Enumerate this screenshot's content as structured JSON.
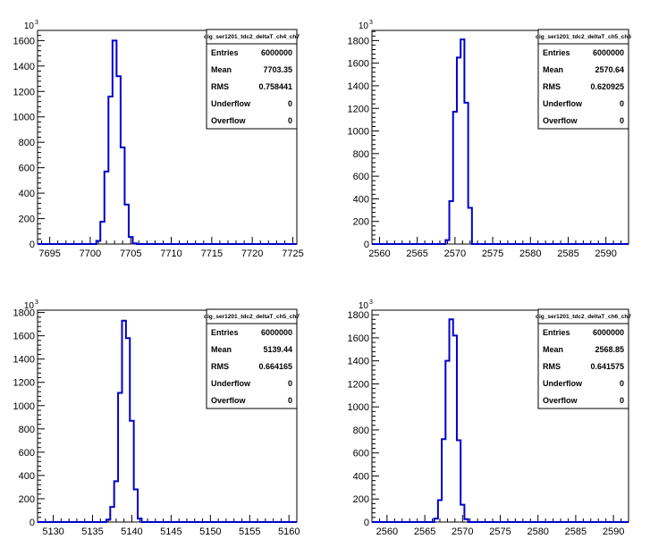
{
  "colors": {
    "histogram_line": "#0000cc",
    "frame": "#000000",
    "background": "#ffffff"
  },
  "chart_data": [
    {
      "type": "histogram",
      "title": "dig_ser1201_tdc2_deltaT_ch4_ch7",
      "x": [
        7701,
        7701.5,
        7702,
        7702.5,
        7703,
        7703.5,
        7704,
        7704.5,
        7705,
        7705.5
      ],
      "values": [
        25,
        175,
        570,
        1160,
        1600,
        1320,
        760,
        310,
        55,
        5
      ],
      "xlim": [
        7693.5,
        7725.5
      ],
      "ylim": [
        0,
        1680
      ],
      "bin_width": 0.5,
      "xticks": [
        7695,
        7700,
        7705,
        7710,
        7715,
        7720,
        7725
      ],
      "yticks": [
        0,
        200,
        400,
        600,
        800,
        1000,
        1200,
        1400,
        1600
      ],
      "y_exponent_base": "10",
      "y_exponent_power": "3",
      "stats": [
        {
          "key": "Entries",
          "value": "6000000"
        },
        {
          "key": "Mean",
          "value": "7703.35"
        },
        {
          "key": "RMS",
          "value": "0.758441"
        },
        {
          "key": "Underflow",
          "value": "0"
        },
        {
          "key": "Overflow",
          "value": "0"
        }
      ]
    },
    {
      "type": "histogram",
      "title": "dig_ser1201_tdc2_deltaT_ch5_ch6",
      "x": [
        2569,
        2569.5,
        2570,
        2570.5,
        2571,
        2571.5,
        2572
      ],
      "values": [
        35,
        380,
        1170,
        1650,
        1810,
        1250,
        320
      ],
      "xlim": [
        2559,
        2593
      ],
      "ylim": [
        0,
        1890
      ],
      "bin_width": 0.5,
      "xticks": [
        2560,
        2565,
        2570,
        2575,
        2580,
        2585,
        2590
      ],
      "yticks": [
        0,
        200,
        400,
        600,
        800,
        1000,
        1200,
        1400,
        1600,
        1800
      ],
      "y_exponent_base": "10",
      "y_exponent_power": "3",
      "stats": [
        {
          "key": "Entries",
          "value": "6000000"
        },
        {
          "key": "Mean",
          "value": "2570.64"
        },
        {
          "key": "RMS",
          "value": "0.620925"
        },
        {
          "key": "Underflow",
          "value": "0"
        },
        {
          "key": "Overflow",
          "value": "0"
        }
      ]
    },
    {
      "type": "histogram",
      "title": "dig_ser1201_tdc2_deltaT_ch5_ch7",
      "x": [
        5137,
        5137.5,
        5138,
        5138.5,
        5139,
        5139.5,
        5140,
        5140.5,
        5141
      ],
      "values": [
        20,
        130,
        350,
        1110,
        1730,
        1580,
        870,
        280,
        30
      ],
      "xlim": [
        5128,
        5161
      ],
      "ylim": [
        0,
        1820
      ],
      "bin_width": 0.5,
      "xticks": [
        5130,
        5135,
        5140,
        5145,
        5150,
        5155,
        5160
      ],
      "yticks": [
        0,
        200,
        400,
        600,
        800,
        1000,
        1200,
        1400,
        1600,
        1800
      ],
      "y_exponent_base": "10",
      "y_exponent_power": "3",
      "stats": [
        {
          "key": "Entries",
          "value": "6000000"
        },
        {
          "key": "Mean",
          "value": "5139.44"
        },
        {
          "key": "RMS",
          "value": "0.664165"
        },
        {
          "key": "Underflow",
          "value": "0"
        },
        {
          "key": "Overflow",
          "value": "0"
        }
      ]
    },
    {
      "type": "histogram",
      "title": "dig_ser1201_tdc2_deltaT_ch6_ch7",
      "x": [
        2566.5,
        2567,
        2567.5,
        2568,
        2568.5,
        2569,
        2569.5,
        2570,
        2570.5
      ],
      "values": [
        30,
        190,
        720,
        1400,
        1760,
        1620,
        710,
        150,
        25
      ],
      "xlim": [
        2558,
        2592
      ],
      "ylim": [
        0,
        1840
      ],
      "bin_width": 0.5,
      "xticks": [
        2560,
        2565,
        2570,
        2575,
        2580,
        2585,
        2590
      ],
      "yticks": [
        0,
        200,
        400,
        600,
        800,
        1000,
        1200,
        1400,
        1600,
        1800
      ],
      "y_exponent_base": "10",
      "y_exponent_power": "3",
      "stats": [
        {
          "key": "Entries",
          "value": "6000000"
        },
        {
          "key": "Mean",
          "value": "2568.85"
        },
        {
          "key": "RMS",
          "value": "0.641575"
        },
        {
          "key": "Underflow",
          "value": "0"
        },
        {
          "key": "Overflow",
          "value": "0"
        }
      ]
    }
  ]
}
